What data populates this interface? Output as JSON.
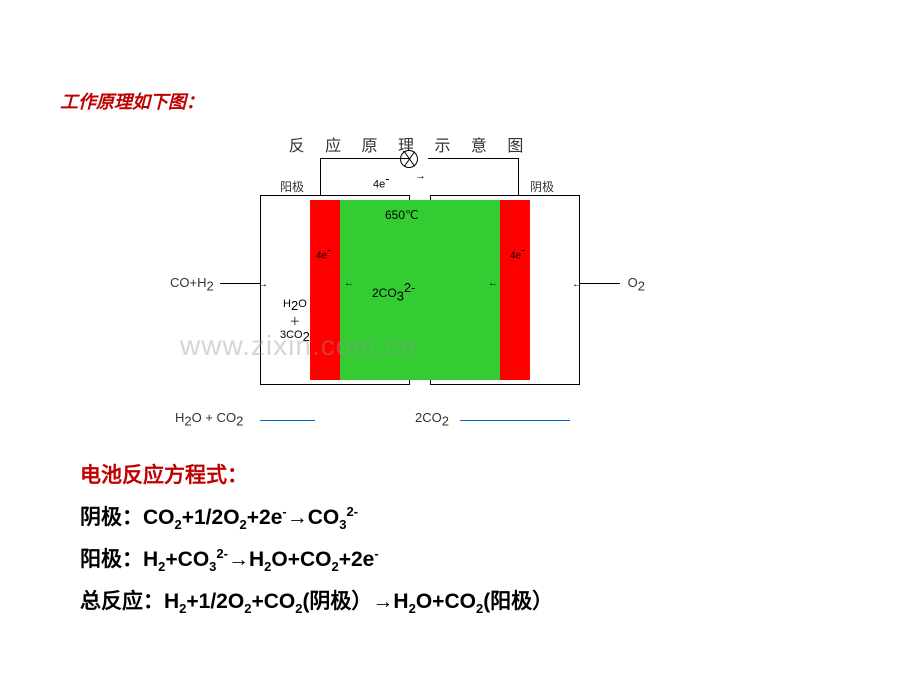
{
  "title": "工作原理如下图：",
  "diagram": {
    "heading": "反 应 原 理 示 意 图",
    "anode_label": "阳极",
    "cathode_label": "阴极",
    "electron_text": "4e",
    "electron_arrow": "→",
    "temperature": "650℃",
    "carbonate": "2CO₃²⁻",
    "e_left": "4e⁻",
    "e_right": "4e⁻",
    "side_products": "H₂O\n＋\n3CO₂",
    "input_left": "CO+H₂ →",
    "input_right": "← O₂",
    "output_left": "H₂O + CO₂ ←",
    "output_right": "2CO₂",
    "arrow_small_L": "→",
    "arrow_small_R": "←",
    "arrow_cb_L": "←",
    "arrow_cb_R": "←",
    "colors": {
      "electrode": "#ff0000",
      "electrolyte": "#33cc33",
      "background": "#ffffff",
      "title_color": "#c00000"
    }
  },
  "watermark": "www.zixin.com.cn",
  "equations": {
    "heading": "电池反应方程式：",
    "cathode": "阴极：CO₂+1/2O₂+2e⁻→CO₃²⁻",
    "anode": "阳极：H₂+CO₃²⁻→H₂O+CO₂+2e⁻",
    "overall": "总反应：H₂+1/2O₂+CO₂(阴极）→H₂O+CO₂(阳极）"
  }
}
